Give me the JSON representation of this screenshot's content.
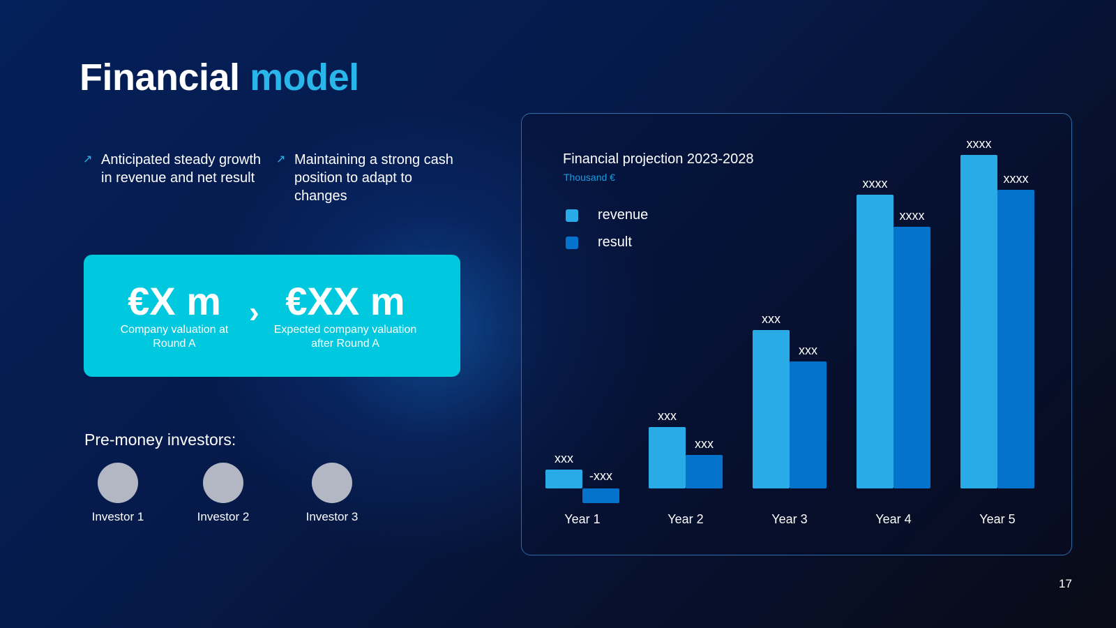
{
  "title": {
    "main": "Financial",
    "accent": "model"
  },
  "bullets": [
    {
      "icon": "arrow-up-right-icon",
      "text": "Anticipated steady growth in revenue and net result"
    },
    {
      "icon": "arrow-up-right-icon",
      "text": "Maintaining a strong cash position to adapt to changes"
    }
  ],
  "valuation": {
    "current": {
      "value": "€X m",
      "label": "Company valuation at Round A"
    },
    "expected": {
      "value": "€XX m",
      "label": "Expected company valuation after Round A"
    },
    "separator": "›"
  },
  "investors": {
    "heading": "Pre-money investors:",
    "items": [
      "Investor 1",
      "Investor 2",
      "Investor 3"
    ]
  },
  "page_number": "17",
  "colors": {
    "accent": "#29b6ea",
    "box": "#00c8de",
    "revenue": "#29abe8",
    "result": "#0373cc"
  },
  "chart_data": {
    "type": "bar",
    "title": "Financial projection 2023-2028",
    "subtitle": "Thousand €",
    "categories": [
      "Year 1",
      "Year 2",
      "Year 3",
      "Year 4",
      "Year 5"
    ],
    "series": [
      {
        "name": "revenue",
        "values": [
          27,
          88,
          227,
          421,
          478
        ],
        "labels": [
          "xxx",
          "xxx",
          "xxx",
          "xxxx",
          "xxxx"
        ]
      },
      {
        "name": "result",
        "values": [
          -21,
          48,
          182,
          375,
          428
        ],
        "labels": [
          "-xxx",
          "xxx",
          "xxx",
          "xxxx",
          "xxxx"
        ]
      }
    ],
    "ylim": [
      -50,
      500
    ],
    "grid": false,
    "legend": "top-left"
  }
}
